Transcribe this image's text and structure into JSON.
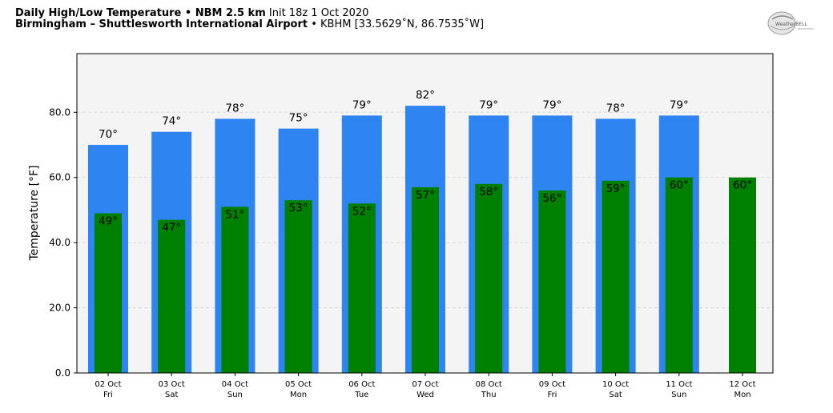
{
  "header": {
    "title_bold": "Daily High/Low Temperature • NBM 2.5 km",
    "title_init": "Init 18z 1 Oct 2020",
    "location_bold": "Birmingham – Shuttlesworth International Airport",
    "location_rest": "• KBHM [33.5629˚N, 86.7535˚W]",
    "logo_text": "WeatherBELL"
  },
  "chart_data": {
    "type": "bar",
    "ylabel": "Temperature [°F]",
    "ylim": [
      0,
      98
    ],
    "yticks": [
      "0.0",
      "20.0",
      "40.0",
      "60.0",
      "80.0"
    ],
    "grid": true,
    "categories": [
      {
        "date": "02 Oct",
        "day": "Fri"
      },
      {
        "date": "03 Oct",
        "day": "Sat"
      },
      {
        "date": "04 Oct",
        "day": "Sun"
      },
      {
        "date": "05 Oct",
        "day": "Mon"
      },
      {
        "date": "06 Oct",
        "day": "Tue"
      },
      {
        "date": "07 Oct",
        "day": "Wed"
      },
      {
        "date": "08 Oct",
        "day": "Thu"
      },
      {
        "date": "09 Oct",
        "day": "Fri"
      },
      {
        "date": "10 Oct",
        "day": "Sat"
      },
      {
        "date": "11 Oct",
        "day": "Sun"
      },
      {
        "date": "12 Oct",
        "day": "Mon"
      }
    ],
    "series": [
      {
        "values": [
          70,
          74,
          78,
          75,
          79,
          82,
          79,
          79,
          78,
          79,
          null
        ],
        "color": "#2e84f0"
      },
      {
        "values": [
          49,
          47,
          51,
          53,
          52,
          57,
          58,
          56,
          59,
          60,
          60
        ],
        "color": "#008000"
      }
    ],
    "value_labels": {
      "high": [
        "70°",
        "74°",
        "78°",
        "75°",
        "79°",
        "82°",
        "79°",
        "79°",
        "78°",
        "79°",
        ""
      ],
      "low": [
        "49°",
        "47°",
        "51°",
        "53°",
        "52°",
        "57°",
        "58°",
        "56°",
        "59°",
        "60°",
        "60°"
      ]
    }
  }
}
